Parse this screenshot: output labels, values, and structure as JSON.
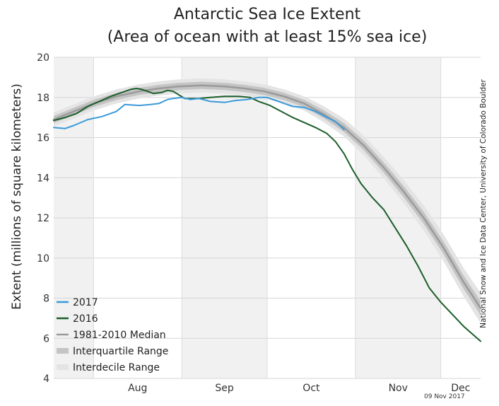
{
  "chart_data": {
    "type": "line",
    "title": "Antarctic Sea Ice Extent",
    "subtitle": "(Area of ocean with at least 15% sea ice)",
    "ylabel": "Extent (millions of square kilometers)",
    "xlabel": "",
    "ylim": [
      4,
      20
    ],
    "yticks": [
      4,
      6,
      8,
      10,
      12,
      14,
      16,
      18,
      20
    ],
    "x_unit": "day of year",
    "xlim": [
      198,
      348
    ],
    "x_ticks": [
      {
        "label": "Aug",
        "day": 212
      },
      {
        "label": "Sep",
        "day": 243
      },
      {
        "label": "Oct",
        "day": 273
      },
      {
        "label": "Nov",
        "day": 304
      },
      {
        "label": "Dec",
        "day": 334
      }
    ],
    "grid": "horizontal",
    "legend_position": "bottom-left",
    "series": [
      {
        "name": "2017",
        "color": "#3a9ad9",
        "x": [
          198,
          202,
          205,
          210,
          215,
          220,
          223,
          228,
          232,
          235,
          238,
          240,
          243,
          246,
          249,
          253,
          258,
          262,
          266,
          270,
          273,
          276,
          279,
          282,
          286,
          290,
          294,
          297,
          300
        ],
        "y": [
          16.5,
          16.45,
          16.6,
          16.9,
          17.05,
          17.3,
          17.65,
          17.6,
          17.65,
          17.7,
          17.9,
          17.95,
          18.0,
          17.9,
          17.95,
          17.8,
          17.75,
          17.85,
          17.9,
          18.0,
          18.0,
          17.85,
          17.7,
          17.55,
          17.5,
          17.3,
          17.0,
          16.8,
          16.4
        ]
      },
      {
        "name": "2016",
        "color": "#1b5e2a",
        "x": [
          198,
          202,
          206,
          210,
          214,
          218,
          222,
          225,
          227,
          229,
          233,
          236,
          238,
          240,
          244,
          249,
          253,
          258,
          263,
          267,
          270,
          274,
          278,
          282,
          286,
          290,
          294,
          297,
          300,
          303,
          306,
          310,
          314,
          318,
          322,
          326,
          330,
          334,
          338,
          342,
          346,
          348
        ],
        "y": [
          16.85,
          17.0,
          17.2,
          17.55,
          17.8,
          18.05,
          18.25,
          18.4,
          18.45,
          18.4,
          18.2,
          18.25,
          18.35,
          18.3,
          17.95,
          17.95,
          18.0,
          18.05,
          18.05,
          18.0,
          17.8,
          17.6,
          17.3,
          17.0,
          16.75,
          16.5,
          16.2,
          15.8,
          15.2,
          14.4,
          13.7,
          13.0,
          12.4,
          11.5,
          10.6,
          9.6,
          8.5,
          7.8,
          7.2,
          6.6,
          6.1,
          5.85
        ]
      },
      {
        "name": "1981-2010 Median",
        "color": "#9a9a9a",
        "x": [
          198,
          205,
          212,
          220,
          228,
          235,
          242,
          250,
          258,
          265,
          272,
          279,
          286,
          293,
          300,
          307,
          314,
          321,
          328,
          335,
          342,
          348
        ],
        "y": [
          16.9,
          17.3,
          17.7,
          18.05,
          18.3,
          18.45,
          18.55,
          18.6,
          18.55,
          18.45,
          18.3,
          18.05,
          17.7,
          17.15,
          16.5,
          15.6,
          14.5,
          13.3,
          12.0,
          10.5,
          8.8,
          7.5
        ]
      }
    ],
    "bands": [
      {
        "name": "Interquartile Range",
        "color": "#c4c4c4",
        "half_width_small": 0.18,
        "half_width_large": 0.35
      },
      {
        "name": "Interdecile Range",
        "color": "#e4e4e4",
        "half_width_small": 0.35,
        "half_width_large": 0.75
      }
    ],
    "legend": [
      {
        "label": "2017",
        "kind": "line",
        "color": "#3a9ad9"
      },
      {
        "label": "2016",
        "kind": "line",
        "color": "#1b5e2a"
      },
      {
        "label": "1981-2010 Median",
        "kind": "line",
        "color": "#9a9a9a"
      },
      {
        "label": "Interquartile Range",
        "kind": "band",
        "color": "#c4c4c4"
      },
      {
        "label": "Interdecile Range",
        "kind": "band",
        "color": "#e4e4e4"
      }
    ],
    "credit": "National Snow and Ice Data Center, University of Colorado Boulder",
    "date": "09 Nov 2017"
  }
}
